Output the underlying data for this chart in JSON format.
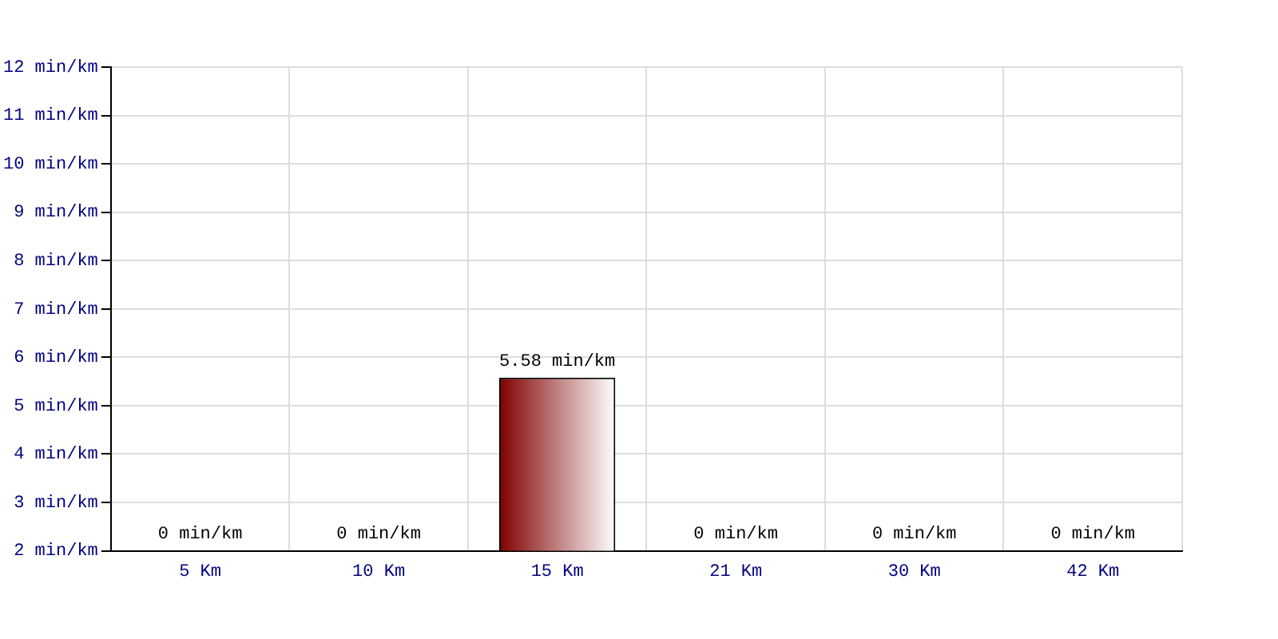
{
  "chart_data": {
    "type": "bar",
    "categories": [
      "5 Km",
      "10 Km",
      "15 Km",
      "21 Km",
      "30 Km",
      "42 Km"
    ],
    "values": [
      null,
      null,
      5.58,
      null,
      null,
      null
    ],
    "value_labels": [
      "0 min/km",
      "0 min/km",
      "5.58 min/km",
      "0 min/km",
      "0 min/km",
      "0 min/km"
    ],
    "color": "#800000",
    "ylim": [
      2,
      12
    ],
    "yticks": [
      {
        "value": 2,
        "label": "2 min/km"
      },
      {
        "value": 3,
        "label": "3 min/km"
      },
      {
        "value": 4,
        "label": "4 min/km"
      },
      {
        "value": 5,
        "label": "5 min/km"
      },
      {
        "value": 6,
        "label": "6 min/km"
      },
      {
        "value": 7,
        "label": "7 min/km"
      },
      {
        "value": 8,
        "label": "8 min/km"
      },
      {
        "value": 9,
        "label": "9 min/km"
      },
      {
        "value": 10,
        "label": "10 min/km"
      },
      {
        "value": 11,
        "label": "11 min/km"
      },
      {
        "value": 12,
        "label": "12 min/km"
      }
    ],
    "grid": true
  }
}
